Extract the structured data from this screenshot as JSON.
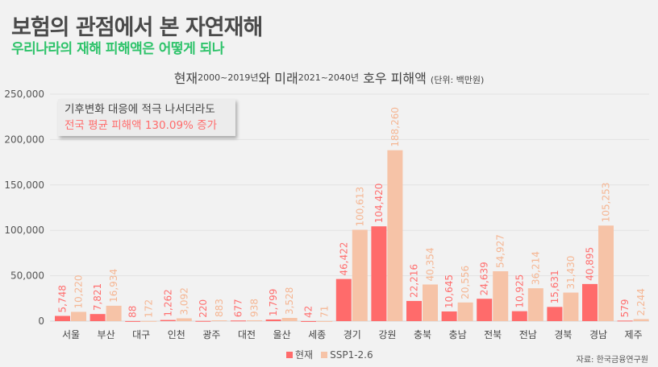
{
  "header": {
    "title": "보험의 관점에서 본 자연재해",
    "subtitle": "우리나라의 재해 피해액은 어떻게 되나"
  },
  "chart_data": {
    "type": "bar",
    "title_parts": {
      "a": "현재",
      "b": "2000~2019년",
      "c": "와 미래",
      "d": "2021~2040년",
      "e": " 호우 피해액 ",
      "unit": "(단위: 백만원)"
    },
    "categories": [
      "서울",
      "부산",
      "대구",
      "인천",
      "광주",
      "대전",
      "울산",
      "세종",
      "경기",
      "강원",
      "충북",
      "충남",
      "전북",
      "전남",
      "경북",
      "경남",
      "제주"
    ],
    "series": [
      {
        "name": "현재",
        "color": "#ff6b6b",
        "label_color": "#ff6f6f",
        "values": [
          5748,
          7821,
          88,
          1262,
          220,
          677,
          1799,
          42,
          46422,
          104420,
          22216,
          10645,
          24639,
          10925,
          15631,
          40895,
          579
        ]
      },
      {
        "name": "SSP1-2.6",
        "color": "#f6c3a7",
        "label_color": "#f5b693",
        "values": [
          10220,
          16934,
          172,
          3092,
          883,
          938,
          3528,
          71,
          100613,
          188260,
          40354,
          20556,
          54927,
          36214,
          31430,
          105253,
          2244
        ]
      }
    ],
    "yticks": [
      "0",
      "50,000",
      "100,000",
      "150,000",
      "200,000",
      "250,000"
    ],
    "ylim": [
      0,
      250000
    ],
    "grid": true,
    "legend": "bottom-center",
    "annotation": {
      "line1": "기후변화 대응에 적극 나서더라도",
      "line2": "전국 평균 피해액 130.09% 증가"
    },
    "source": "자료: 한국금융연구원"
  }
}
